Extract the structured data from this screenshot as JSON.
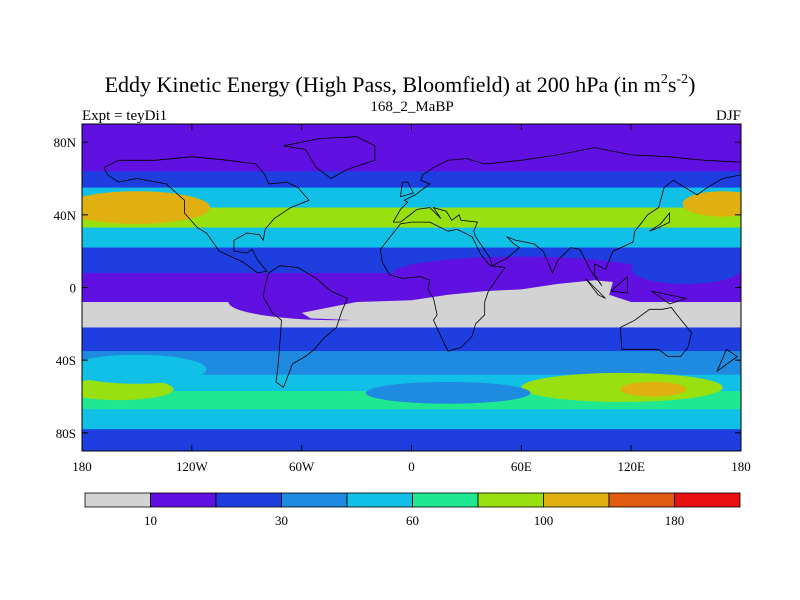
{
  "chart_data": {
    "type": "heatmap",
    "title": "Eddy Kinetic Energy (High Pass, Bloomfield) at 200 hPa (in m",
    "title_sup1": "2",
    "title_mid": "s",
    "title_sup2": "-2",
    "title_end": ")",
    "subtitle": "168_2_MaBP",
    "left_label": "Expt = teyDi1",
    "right_label": "DJF",
    "x_ticks": [
      "180",
      "120W",
      "60W",
      "0",
      "60E",
      "120E",
      "180"
    ],
    "x_tick_values": [
      -180,
      -120,
      -60,
      0,
      60,
      120,
      180
    ],
    "y_ticks": [
      "80N",
      "40N",
      "0",
      "40S",
      "80S"
    ],
    "y_tick_values": [
      80,
      40,
      0,
      -40,
      -80
    ],
    "xlim": [
      -180,
      180
    ],
    "ylim": [
      -90,
      90
    ],
    "colorbar": {
      "colors": [
        "#d3d3d3",
        "#6010e0",
        "#1e3ee0",
        "#1e8ae0",
        "#10c0e6",
        "#20e890",
        "#98e010",
        "#e0b010",
        "#e05a10",
        "#e81010"
      ],
      "labels": [
        "10",
        "30",
        "60",
        "100",
        "180"
      ],
      "label_positions": [
        1,
        3,
        5,
        7,
        9
      ]
    },
    "zonal_profile": [
      {
        "lat": 90,
        "level": 1
      },
      {
        "lat": 72,
        "level": 1
      },
      {
        "lat": 64,
        "level": 2
      },
      {
        "lat": 55,
        "level": 4
      },
      {
        "lat": 44,
        "level": 6
      },
      {
        "lat": 33,
        "level": 4
      },
      {
        "lat": 22,
        "level": 2
      },
      {
        "lat": 8,
        "level": 1
      },
      {
        "lat": -8,
        "level": 0
      },
      {
        "lat": -22,
        "level": 2
      },
      {
        "lat": -35,
        "level": 3
      },
      {
        "lat": -48,
        "level": 4
      },
      {
        "lat": -57,
        "level": 5
      },
      {
        "lat": -67,
        "level": 4
      },
      {
        "lat": -78,
        "level": 2
      },
      {
        "lat": -90,
        "level": 1
      }
    ]
  }
}
